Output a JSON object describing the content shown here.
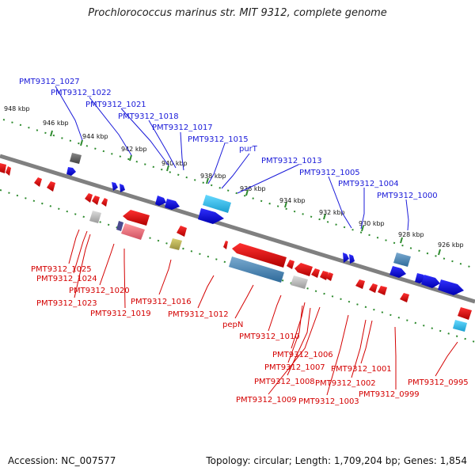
{
  "header": {
    "title": "Prochlorococcus marinus str. MIT 9312, complete genome"
  },
  "footer": {
    "accession": "Accession: NC_007577",
    "summary": "Topology: circular; Length: 1,709,204 bp; Genes: 1,854"
  },
  "ticks": [
    "948 kbp",
    "946 kbp",
    "944 kbp",
    "942 kbp",
    "940 kbp",
    "938 kbp",
    "936 kbp",
    "934 kbp",
    "932 kbp",
    "930 kbp",
    "928 kbp",
    "926 kbp"
  ],
  "forward_labels": [
    "PMT9312_1027",
    "PMT9312_1022",
    "PMT9312_1021",
    "PMT9312_1018",
    "PMT9312_1017",
    "PMT9312_1015",
    "purT",
    "PMT9312_1013",
    "PMT9312_1005",
    "PMT9312_1004",
    "PMT9312_1000"
  ],
  "reverse_labels": [
    "PMT9312_1025",
    "PMT9312_1024",
    "PMT9312_1023",
    "PMT9312_1020",
    "PMT9312_1019",
    "PMT9312_1016",
    "PMT9312_1012",
    "pepN",
    "PMT9312_1010",
    "PMT9312_1006",
    "PMT9312_1007",
    "PMT9312_1008",
    "PMT9312_1009",
    "PMT9312_1003",
    "PMT9312_1002",
    "PMT9312_1001",
    "PMT9312_0999",
    "PMT9312_0995"
  ],
  "colors": {
    "forward": "#1a1ad9",
    "reverse": "#d40000",
    "backbone": "#808080",
    "tick": "#2e8b2e",
    "rna": "#3fbfe6",
    "pseudo": "#4a84b0"
  }
}
